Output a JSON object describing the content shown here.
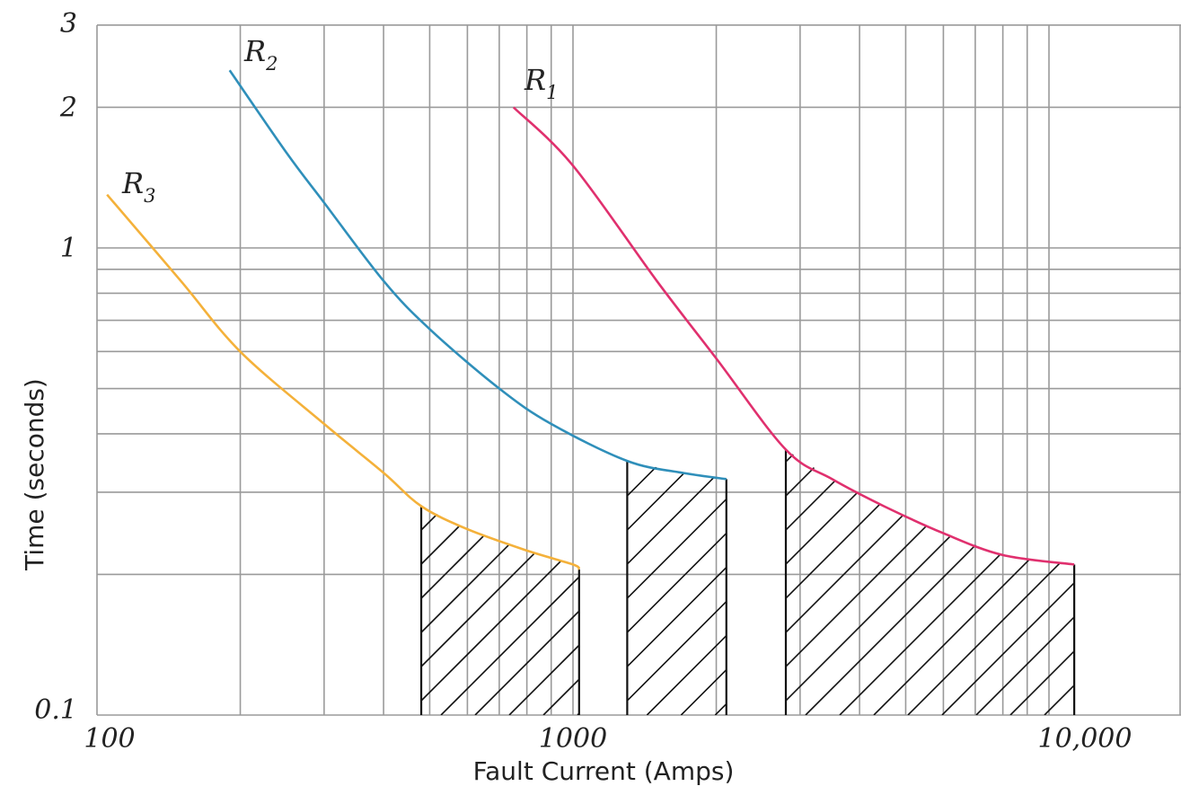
{
  "chart_data": {
    "type": "line",
    "title": "",
    "xlabel": "Fault Current (Amps)",
    "ylabel": "Time (seconds)",
    "x_scale": "log",
    "y_scale": "log",
    "xlim": [
      100,
      14000
    ],
    "ylim": [
      0.1,
      3
    ],
    "x_ticks": [
      {
        "value": 100,
        "label": "100"
      },
      {
        "value": 1000,
        "label": "1000"
      },
      {
        "value": 10000,
        "label": "10,000"
      }
    ],
    "y_ticks": [
      {
        "value": 0.1,
        "label": "0.1"
      },
      {
        "value": 1,
        "label": "1"
      },
      {
        "value": 2,
        "label": "2"
      },
      {
        "value": 3,
        "label": "3"
      }
    ],
    "grid": true,
    "x_grid": [
      200,
      300,
      400,
      500,
      600,
      700,
      800,
      900,
      2000,
      3000,
      4000,
      5000,
      6000,
      7000,
      8000,
      9000
    ],
    "y_grid": [
      0.2,
      0.3,
      0.4,
      0.5,
      0.6,
      0.7,
      0.8,
      0.9,
      2
    ],
    "series": [
      {
        "name": "R1",
        "label": "R",
        "subscript": "1",
        "color": "#e0306e",
        "x": [
          750,
          1000,
          1500,
          2000,
          2800,
          3500,
          4500,
          6000,
          8000,
          11300
        ],
        "y": [
          2.0,
          1.5,
          0.85,
          0.58,
          0.37,
          0.32,
          0.28,
          0.245,
          0.22,
          0.21
        ],
        "shaded_range": [
          2800,
          11300
        ]
      },
      {
        "name": "R2",
        "label": "R",
        "subscript": "2",
        "color": "#2f8fba",
        "x": [
          190,
          250,
          300,
          400,
          500,
          700,
          900,
          1300,
          1700,
          2100
        ],
        "y": [
          2.4,
          1.6,
          1.25,
          0.85,
          0.67,
          0.5,
          0.42,
          0.35,
          0.33,
          0.32
        ],
        "shaded_range": [
          1300,
          2100
        ]
      },
      {
        "name": "R3",
        "label": "R",
        "subscript": "3",
        "color": "#f4b13a",
        "x": [
          105,
          150,
          200,
          300,
          400,
          480,
          600,
          800,
          1000,
          1030
        ],
        "y": [
          1.3,
          0.85,
          0.6,
          0.42,
          0.33,
          0.28,
          0.25,
          0.225,
          0.21,
          0.205
        ],
        "shaded_range": [
          480,
          1030
        ]
      }
    ]
  }
}
